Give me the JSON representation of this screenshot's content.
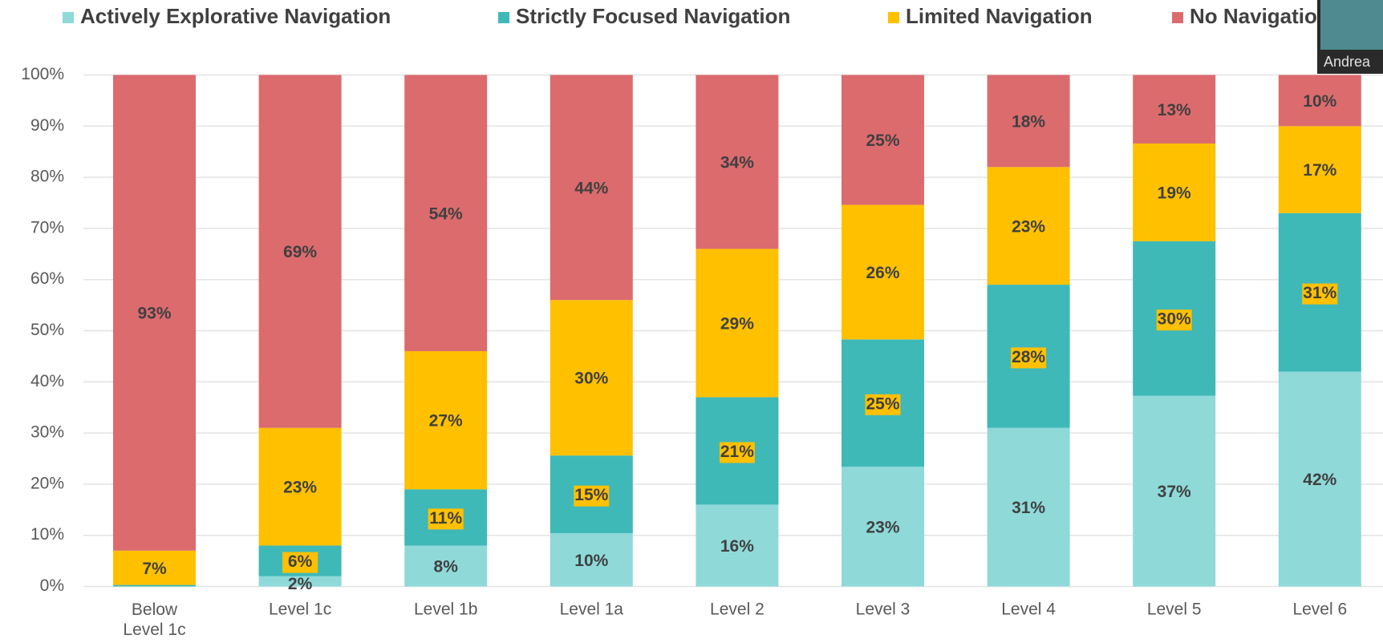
{
  "chart_data": {
    "type": "stacked_bar",
    "categories": [
      "Below Level 1c",
      "Level 1c",
      "Level 1b",
      "Level 1a",
      "Level 2",
      "Level 3",
      "Level 4",
      "Level 5",
      "Level 6"
    ],
    "series": [
      {
        "name": "Actively Explorative Navigation",
        "color": "#8fd9d9",
        "values": [
          0,
          2,
          8,
          10.4,
          16,
          23.4,
          31,
          37.3,
          42
        ],
        "value_labels": [
          null,
          "2%",
          "8%",
          "10%",
          "16%",
          "23%",
          "31%",
          "37%",
          "42%"
        ]
      },
      {
        "name": "Strictly Focused Navigation",
        "color": "#3fb8b8",
        "values": [
          0.3,
          6,
          11,
          15.2,
          21,
          24.9,
          28,
          30.2,
          31
        ],
        "value_labels": [
          null,
          "6%",
          "11%",
          "15%",
          "21%",
          "25%",
          "28%",
          "30%",
          "31%"
        ]
      },
      {
        "name": "Limited Navigation",
        "color": "#ffc000",
        "values": [
          6.7,
          23,
          27,
          30.4,
          29,
          26.3,
          23,
          19.1,
          17
        ],
        "value_labels": [
          "7%",
          "23%",
          "27%",
          "30%",
          "29%",
          "26%",
          "23%",
          "19%",
          "17%"
        ]
      },
      {
        "name": "No Navigation",
        "color": "#dc6b6e",
        "values": [
          93,
          69,
          54,
          44,
          34,
          25.4,
          18,
          13.4,
          10
        ],
        "value_labels": [
          "93%",
          "69%",
          "54%",
          "44%",
          "34%",
          "25%",
          "18%",
          "13%",
          "10%"
        ]
      }
    ],
    "ylim": [
      0,
      100
    ],
    "yticks": [
      {
        "value": 0,
        "label": "0%"
      },
      {
        "value": 10,
        "label": "10%"
      },
      {
        "value": 20,
        "label": "20%"
      },
      {
        "value": 30,
        "label": "30%"
      },
      {
        "value": 40,
        "label": "40%"
      },
      {
        "value": 50,
        "label": "50%"
      },
      {
        "value": 60,
        "label": "60%"
      },
      {
        "value": 70,
        "label": "70%"
      },
      {
        "value": 80,
        "label": "80%"
      },
      {
        "value": 90,
        "label": "90%"
      },
      {
        "value": 100,
        "label": "100%"
      }
    ],
    "grid": true,
    "label_box_series": 1
  },
  "overlay": {
    "name": "Andrea"
  }
}
